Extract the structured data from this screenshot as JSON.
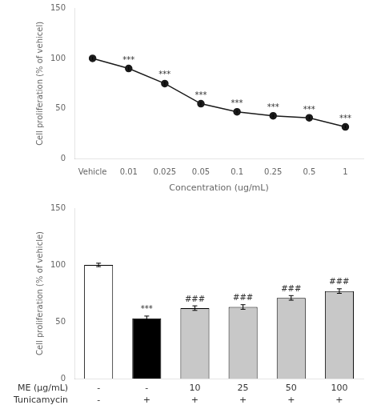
{
  "chart_data": [
    {
      "type": "line",
      "categories": [
        "Vehicle",
        "0.01",
        "0.025",
        "0.05",
        "0.1",
        "0.25",
        "0.5",
        "1"
      ],
      "values": [
        100,
        90,
        75,
        55,
        47,
        43,
        41,
        32
      ],
      "errors": [
        1.5,
        2,
        2,
        2,
        1.5,
        1.5,
        1.5,
        1.5
      ],
      "annotations": [
        null,
        "***",
        "***",
        "***",
        "***",
        "***",
        "***",
        "***"
      ],
      "xlabel": "Concentration (ug/mL)",
      "ylabel": "Cell proliferation (% of vehicel)",
      "ylim": [
        0,
        150
      ],
      "yticks": [
        0,
        50,
        100,
        150
      ],
      "color": "#1a1a1a",
      "marker": "circle",
      "grid": false
    },
    {
      "type": "bar",
      "values": [
        100,
        53,
        62,
        63,
        71,
        77
      ],
      "errors": [
        1.5,
        2,
        2,
        2,
        2,
        2
      ],
      "colors": [
        "white",
        "black",
        "#c8c8c8",
        "#c8c8c8",
        "#c8c8c8",
        "#c8c8c8"
      ],
      "annotations": [
        null,
        "***",
        "###",
        "###",
        "###",
        "###"
      ],
      "ylabel": "Cell proliferation (% of vehicle)",
      "ylim": [
        0,
        150
      ],
      "yticks": [
        0,
        50,
        100,
        150
      ],
      "x_rows": [
        {
          "label": "ME (μg/mL)",
          "values": [
            "-",
            "-",
            "10",
            "25",
            "50",
            "100"
          ]
        },
        {
          "label": "Tunicamycin",
          "values": [
            "-",
            "+",
            "+",
            "+",
            "+",
            "+"
          ]
        }
      ],
      "grid": false
    }
  ]
}
